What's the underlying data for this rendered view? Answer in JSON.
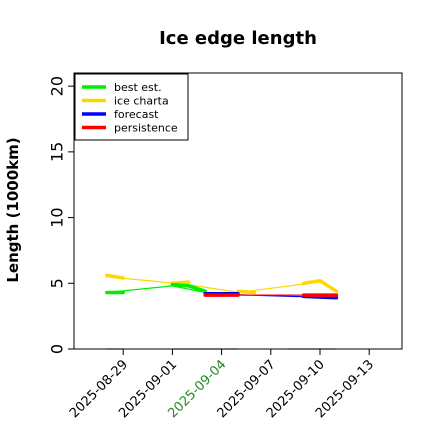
{
  "chart_data": {
    "type": "line",
    "title": "Ice edge length",
    "xlabel": "",
    "ylabel": "Length (1000km)",
    "ylim": [
      0,
      21
    ],
    "xlim": [
      "2025-08-26",
      "2025-09-15"
    ],
    "yticks": [
      0,
      5,
      10,
      15,
      20
    ],
    "xticks": [
      "2025-08-29",
      "2025-09-01",
      "2025-09-04",
      "2025-09-07",
      "2025-09-10",
      "2025-09-13"
    ],
    "highlight_tick": "2025-09-04",
    "highlight_color": "#228B22",
    "grid": false,
    "legend_position": "top-left",
    "legend": [
      {
        "label": "best est.",
        "color": "#00ee00"
      },
      {
        "label": "ice charta",
        "color": "#ffd700"
      },
      {
        "label": "forecast",
        "color": "#0000ff"
      },
      {
        "label": "persistence",
        "color": "#ff0000"
      }
    ],
    "series": [
      {
        "name": "ice charta",
        "color": "#ffd700",
        "width": 1.2,
        "x": [
          "2025-08-28",
          "2025-09-02",
          "2025-09-05",
          "2025-09-10"
        ],
        "y": [
          5.5,
          4.9,
          4.3,
          5.1
        ]
      },
      {
        "name": "ice charta",
        "color": "#ffd700",
        "width": 3.5,
        "x": [
          "2025-08-28",
          "2025-08-29"
        ],
        "y": [
          5.6,
          5.4
        ]
      },
      {
        "name": "ice charta",
        "color": "#ffd700",
        "width": 3.5,
        "x": [
          "2025-09-01",
          "2025-09-02"
        ],
        "y": [
          5.0,
          5.1
        ]
      },
      {
        "name": "ice charta",
        "color": "#ffd700",
        "width": 3.5,
        "x": [
          "2025-09-05",
          "2025-09-06"
        ],
        "y": [
          4.4,
          4.3
        ]
      },
      {
        "name": "ice charta",
        "color": "#ffd700",
        "width": 3.5,
        "x": [
          "2025-09-09",
          "2025-09-10",
          "2025-09-11"
        ],
        "y": [
          5.0,
          5.2,
          4.4
        ]
      },
      {
        "name": "best est.",
        "color": "#00ee00",
        "width": 1.2,
        "x": [
          "2025-08-28",
          "2025-09-01",
          "2025-09-03"
        ],
        "y": [
          4.3,
          4.8,
          4.3
        ]
      },
      {
        "name": "best est.",
        "color": "#00ee00",
        "width": 3.5,
        "x": [
          "2025-08-28",
          "2025-08-29"
        ],
        "y": [
          4.3,
          4.3
        ]
      },
      {
        "name": "best est.",
        "color": "#00ee00",
        "width": 3.5,
        "x": [
          "2025-09-01",
          "2025-09-02",
          "2025-09-03"
        ],
        "y": [
          4.9,
          4.8,
          4.4
        ]
      },
      {
        "name": "forecast",
        "color": "#0000ff",
        "width": 1.2,
        "x": [
          "2025-09-03",
          "2025-09-11"
        ],
        "y": [
          4.2,
          3.9
        ]
      },
      {
        "name": "forecast",
        "color": "#0000ff",
        "width": 3.5,
        "x": [
          "2025-09-03",
          "2025-09-05"
        ],
        "y": [
          4.2,
          4.2
        ]
      },
      {
        "name": "forecast",
        "color": "#0000ff",
        "width": 3.5,
        "x": [
          "2025-09-09",
          "2025-09-11"
        ],
        "y": [
          4.0,
          3.9
        ]
      },
      {
        "name": "persistence",
        "color": "#ff0000",
        "width": 1.2,
        "x": [
          "2025-09-03",
          "2025-09-11"
        ],
        "y": [
          4.1,
          4.1
        ]
      },
      {
        "name": "persistence",
        "color": "#ff0000",
        "width": 3.5,
        "x": [
          "2025-09-03",
          "2025-09-05"
        ],
        "y": [
          4.1,
          4.1
        ]
      },
      {
        "name": "persistence",
        "color": "#ff0000",
        "width": 3.5,
        "x": [
          "2025-09-09",
          "2025-09-11"
        ],
        "y": [
          4.1,
          4.1
        ]
      }
    ],
    "baseline_segments": [
      {
        "x": [
          "2025-08-28",
          "2025-08-29"
        ],
        "y": 0,
        "color": "#808080"
      },
      {
        "x": [
          "2025-09-01",
          "2025-09-05"
        ],
        "y": 0,
        "color": "#808080"
      },
      {
        "x": [
          "2025-09-08",
          "2025-09-11"
        ],
        "y": 0,
        "color": "#808080"
      }
    ]
  }
}
